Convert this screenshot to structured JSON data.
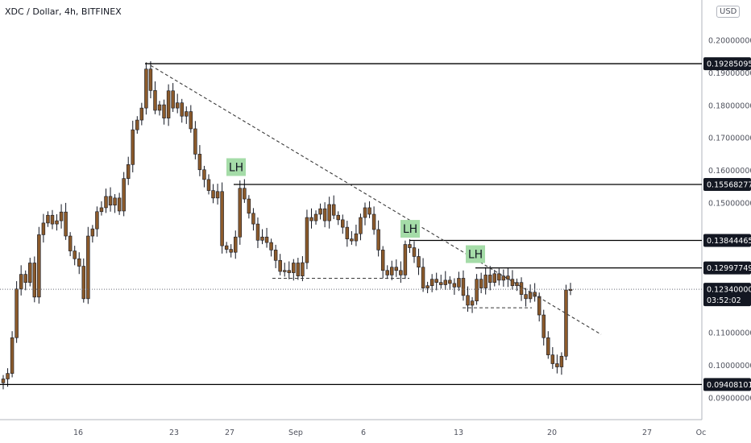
{
  "header": {
    "title": "XDC / Dollar, 4h, BITFINEX",
    "currency_badge": "USD"
  },
  "colors": {
    "candle_fill": "#8b5a2b",
    "candle_wick": "#131722",
    "level_line": "#000000",
    "dashed": "#3a3a3a",
    "lh_badge": "#a5dca8",
    "price_label_bg": "#131722",
    "axis_line": "#b2b5be"
  },
  "chart_data": {
    "type": "candlestick",
    "title": "XDC / Dollar, 4h, BITFINEX",
    "xlabel": "",
    "ylabel": "",
    "y_axis_position": "right",
    "ylim": [
      0.086,
      0.2075
    ],
    "x_ticks": [
      "16",
      "23",
      "27",
      "Sep",
      "6",
      "13",
      "20",
      "27",
      "Oc"
    ],
    "y_ticks": [
      "0.20000000",
      "0.19000000",
      "0.18000000",
      "0.17000000",
      "0.16000000",
      "0.15000000",
      "0.11000000",
      "0.10000000",
      "0.09000000"
    ],
    "levels": [
      {
        "value": 0.19285095,
        "label": "0.19285095"
      },
      {
        "value": 0.15568277,
        "label": "0.15568277"
      },
      {
        "value": 0.13844465,
        "label": "0.13844465"
      },
      {
        "value": 0.12997749,
        "label": "0.12997749"
      },
      {
        "value": 0.09408101,
        "label": "0.09408101"
      }
    ],
    "current_price": {
      "value": 0.1234,
      "label": "0.12340000",
      "countdown": "03:52:02"
    },
    "annotations": [
      {
        "text": "LH",
        "near": "27",
        "price": 0.1573
      },
      {
        "text": "LH",
        "near": "9 Sep",
        "price": 0.1383
      },
      {
        "text": "LH",
        "near": "14 Sep",
        "price": 0.1305
      }
    ],
    "trendline": {
      "from_price": 0.1932,
      "to_price": 0.1095,
      "style": "dashed"
    },
    "support_segments": [
      {
        "price": 0.1268,
        "style": "dashed"
      },
      {
        "price": 0.1177,
        "style": "dashed"
      }
    ],
    "closes": [
      0.0958,
      0.0975,
      0.1085,
      0.1235,
      0.128,
      0.1255,
      0.1315,
      0.121,
      0.1402,
      0.1438,
      0.1462,
      0.1435,
      0.1445,
      0.1472,
      0.1398,
      0.1352,
      0.1328,
      0.1305,
      0.1205,
      0.1398,
      0.142,
      0.1473,
      0.1485,
      0.152,
      0.1493,
      0.1515,
      0.1475,
      0.1575,
      0.1618,
      0.1725,
      0.1755,
      0.1792,
      0.1912,
      0.1846,
      0.1785,
      0.1802,
      0.1761,
      0.1845,
      0.1792,
      0.1808,
      0.1767,
      0.1781,
      0.1728,
      0.165,
      0.1602,
      0.1572,
      0.1538,
      0.1515,
      0.1535,
      0.1368,
      0.1357,
      0.1348,
      0.1395,
      0.1545,
      0.1512,
      0.1468,
      0.1435,
      0.1385,
      0.1395,
      0.1378,
      0.1355,
      0.1323,
      0.1289,
      0.1292,
      0.1285,
      0.1315,
      0.1275,
      0.1316,
      0.1455,
      0.1445,
      0.1465,
      0.1482,
      0.1445,
      0.1495,
      0.1462,
      0.1448,
      0.1425,
      0.1389,
      0.1383,
      0.1405,
      0.1455,
      0.1485,
      0.1465,
      0.1418,
      0.1355,
      0.1292,
      0.1278,
      0.1302,
      0.1292,
      0.1278,
      0.1372,
      0.1362,
      0.1335,
      0.1302,
      0.1238,
      0.1245,
      0.1265,
      0.1255,
      0.1248,
      0.1262,
      0.1252,
      0.1241,
      0.1268,
      0.1215,
      0.1185,
      0.1198,
      0.1265,
      0.1238,
      0.1278,
      0.1255,
      0.1282,
      0.1262,
      0.1275,
      0.1265,
      0.1245,
      0.1255,
      0.1218,
      0.1205,
      0.1225,
      0.1212,
      0.1155,
      0.1085,
      0.1032,
      0.1005,
      0.0995,
      0.1028,
      0.1232,
      0.1234
    ]
  }
}
